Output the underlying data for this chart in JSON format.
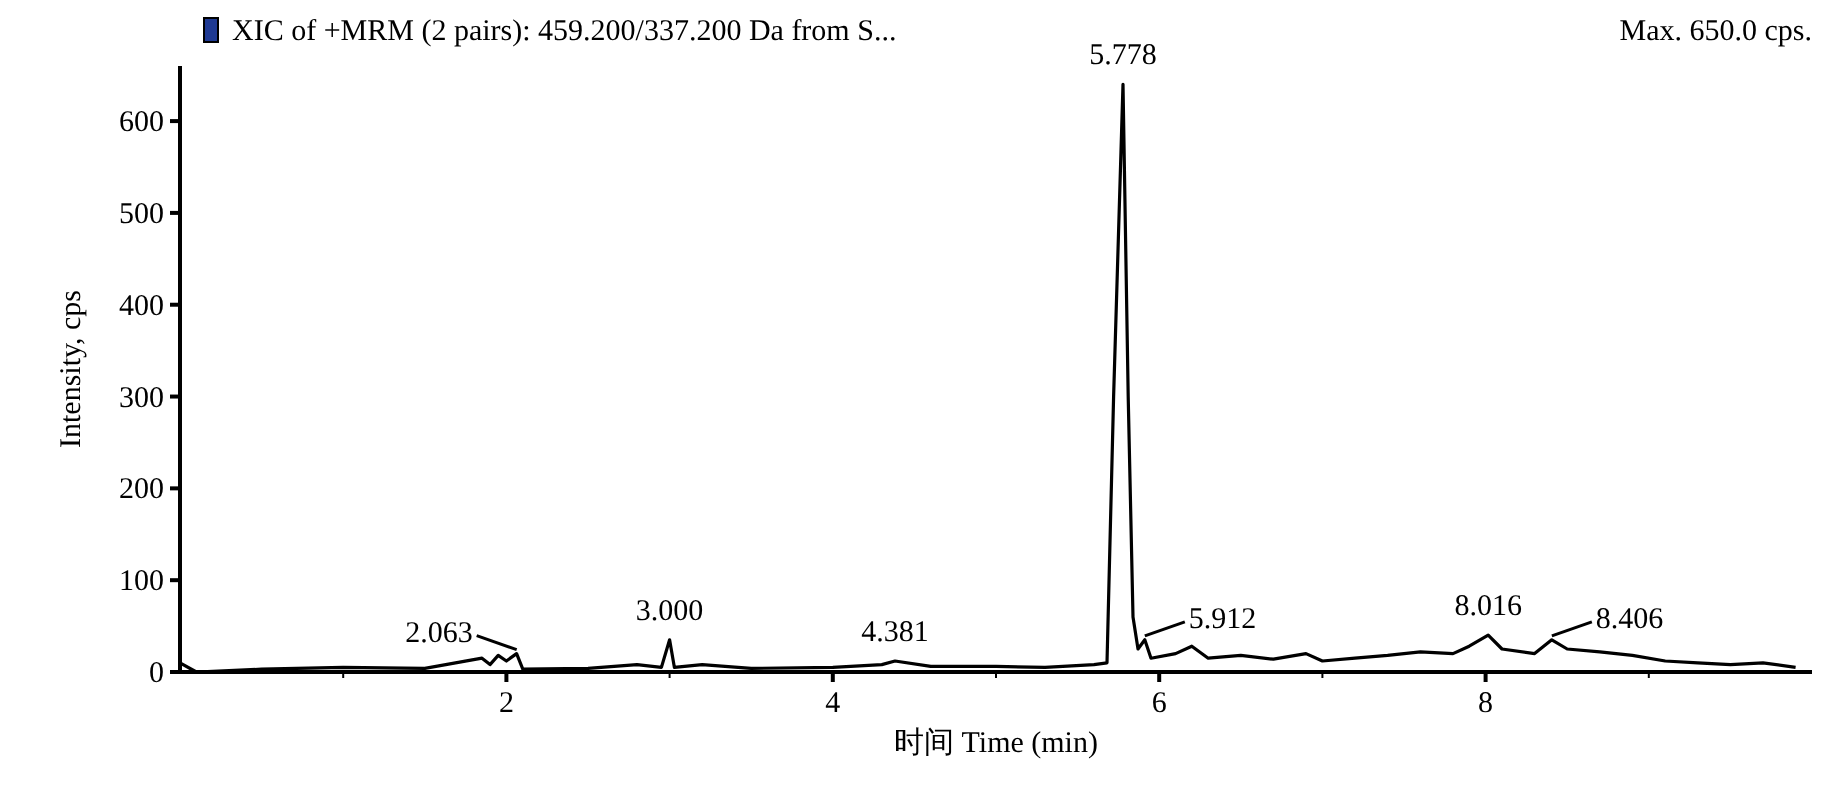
{
  "chart_data": {
    "type": "line",
    "title": "XIC of +MRM (2 pairs): 459.200/337.200 Da  from S...",
    "xlabel": "时间 Time (min)",
    "ylabel": "Intensity, cps",
    "xlim": [
      0,
      10
    ],
    "ylim": [
      0,
      660
    ],
    "xticks": [
      {
        "value": 1,
        "label": null
      },
      2,
      {
        "value": 3,
        "label": null
      },
      4,
      {
        "value": 5,
        "label": null
      },
      6,
      {
        "value": 7,
        "label": null
      },
      8,
      {
        "value": 9,
        "label": null
      }
    ],
    "yticks": [
      0,
      100,
      200,
      300,
      400,
      500,
      600
    ],
    "grid": false,
    "series": [
      {
        "color": "#000000",
        "x": [
          0,
          0.1,
          0.5,
          1.0,
          1.5,
          1.85,
          1.9,
          1.95,
          2.0,
          2.063,
          2.1,
          2.5,
          2.8,
          2.95,
          3.0,
          3.03,
          3.2,
          3.5,
          4.0,
          4.3,
          4.381,
          4.6,
          5.0,
          5.3,
          5.6,
          5.68,
          5.72,
          5.778,
          5.81,
          5.84,
          5.87,
          5.912,
          5.95,
          6.1,
          6.2,
          6.3,
          6.5,
          6.7,
          6.9,
          7.0,
          7.2,
          7.4,
          7.6,
          7.8,
          7.9,
          8.016,
          8.1,
          8.3,
          8.406,
          8.5,
          8.7,
          8.9,
          9.1,
          9.3,
          9.5,
          9.7,
          9.9
        ],
        "values": [
          10,
          0,
          3,
          5,
          4,
          15,
          8,
          18,
          12,
          20,
          3,
          4,
          8,
          5,
          35,
          5,
          8,
          4,
          5,
          8,
          12,
          6,
          6,
          5,
          8,
          10,
          300,
          640,
          300,
          60,
          25,
          35,
          15,
          20,
          28,
          15,
          18,
          14,
          20,
          12,
          15,
          18,
          22,
          20,
          28,
          40,
          25,
          20,
          35,
          25,
          22,
          18,
          12,
          10,
          8,
          10,
          5
        ]
      }
    ],
    "annotations": [
      {
        "text": "5.778",
        "x": 5.778,
        "y": 640
      },
      {
        "text": "2.063",
        "x": 2.063,
        "y": 20
      },
      {
        "text": "3.000",
        "x": 3.0,
        "y": 35
      },
      {
        "text": "4.381",
        "x": 4.381,
        "y": 12
      },
      {
        "text": "5.912",
        "x": 5.912,
        "y": 35
      },
      {
        "text": "8.016",
        "x": 8.016,
        "y": 40
      },
      {
        "text": "8.406",
        "x": 8.406,
        "y": 35
      },
      "Max. 650.0 cps."
    ]
  }
}
